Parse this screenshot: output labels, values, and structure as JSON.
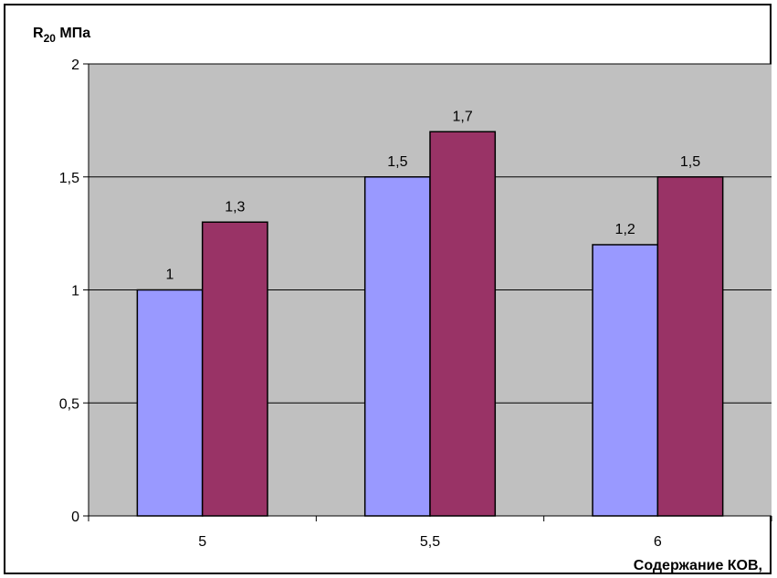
{
  "chart_data": {
    "type": "bar",
    "ylabel_main": "R",
    "ylabel_sub": "20",
    "ylabel_unit": " МПа",
    "xlabel": "Содержание КОВ,",
    "categories": [
      "5",
      "5,5",
      "6"
    ],
    "series": [
      {
        "values": [
          1,
          1.5,
          1.2
        ],
        "labels": [
          "1",
          "1,5",
          "1,2"
        ],
        "color": "#9999ff"
      },
      {
        "values": [
          1.3,
          1.7,
          1.5
        ],
        "labels": [
          "1,3",
          "1,7",
          "1,5"
        ],
        "color": "#993366"
      }
    ],
    "ylim": [
      0,
      2
    ],
    "yticks": [
      0,
      0.5,
      1,
      1.5,
      2
    ],
    "ytick_labels": [
      "0",
      "0,5",
      "1",
      "1,5",
      "2"
    ],
    "grid": true,
    "plot_background": "#c0c0c0",
    "gridline_color": "#000000"
  }
}
